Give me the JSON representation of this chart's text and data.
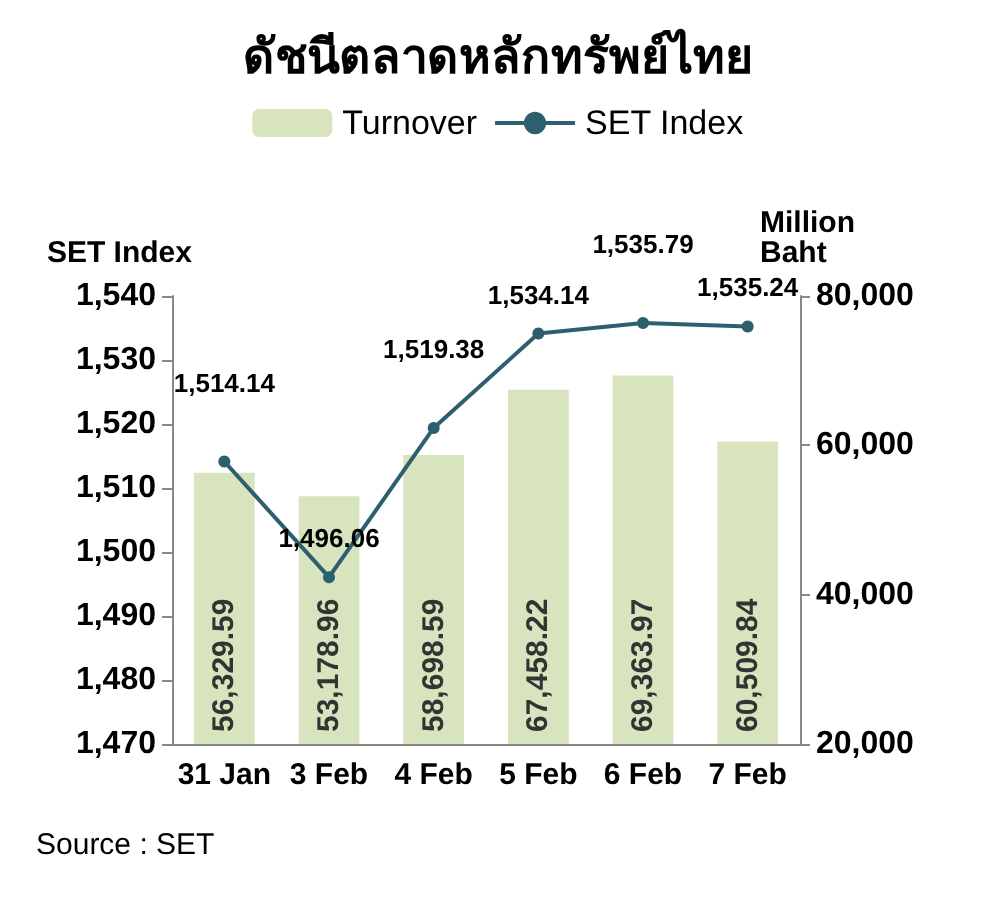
{
  "chart_data": {
    "type": "bar",
    "title": "ดัชนีตลาดหลักทรัพย์ไทย",
    "ylabel": "SET Index",
    "y2label": "Million Baht",
    "categories": [
      "31 Jan",
      "3 Feb",
      "4 Feb",
      "5 Feb",
      "6 Feb",
      "7 Feb"
    ],
    "series": [
      {
        "name": "Turnover",
        "axis": "y2",
        "color": "#d7e4bd",
        "values": [
          56329.59,
          53178.96,
          58698.59,
          67458.22,
          69363.97,
          60509.84
        ],
        "value_labels": [
          "56,329.59",
          "53,178.96",
          "58,698.59",
          "67,458.22",
          "69,363.97",
          "60,509.84"
        ]
      },
      {
        "name": "SET Index",
        "type": "line",
        "color": "#2e5f6e",
        "values": [
          1514.14,
          1496.06,
          1519.38,
          1534.14,
          1535.79,
          1535.24
        ],
        "value_labels": [
          "1,514.14",
          "1,496.06",
          "1,519.38",
          "1,534.14",
          "1,535.79",
          "1,535.24"
        ]
      }
    ],
    "ylim": [
      1470,
      1540
    ],
    "yticks": [
      {
        "value": 1470,
        "label": "1,470"
      },
      {
        "value": 1480,
        "label": "1,480"
      },
      {
        "value": 1490,
        "label": "1,490"
      },
      {
        "value": 1500,
        "label": "1,500"
      },
      {
        "value": 1510,
        "label": "1,510"
      },
      {
        "value": 1520,
        "label": "1,520"
      },
      {
        "value": 1530,
        "label": "1,530"
      },
      {
        "value": 1540,
        "label": "1,540"
      }
    ],
    "y2lim": [
      20000,
      80000
    ],
    "y2ticks": [
      {
        "value": 20000,
        "label": "20,000"
      },
      {
        "value": 40000,
        "label": "40,000"
      },
      {
        "value": 60000,
        "label": "60,000"
      },
      {
        "value": 80000,
        "label": "80,000"
      }
    ],
    "legend": "top",
    "marker": "circle",
    "line_style": "solid",
    "annotations": [
      "Source : SET"
    ]
  }
}
